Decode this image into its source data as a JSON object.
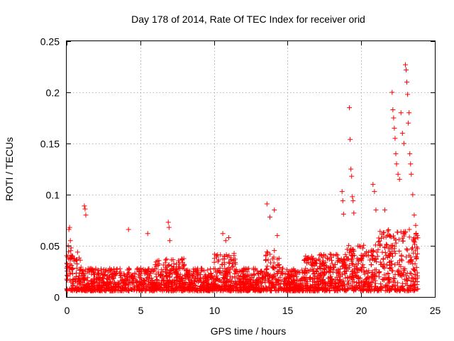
{
  "chart_data": {
    "type": "scatter",
    "title": "Day 178 of 2014, Rate Of TEC Index for receiver orid",
    "xlabel": "GPS time / hours",
    "ylabel": "ROTI / TECUs",
    "xlim": [
      0,
      25
    ],
    "ylim": [
      0,
      0.25
    ],
    "x_ticks": [
      0,
      5,
      10,
      15,
      20,
      25
    ],
    "x_tick_labels": [
      "0",
      "5",
      "10",
      "15",
      "20",
      "25"
    ],
    "y_ticks": [
      0,
      0.05,
      0.1,
      0.15,
      0.2,
      0.25
    ],
    "y_tick_labels": [
      "0",
      "0.05",
      "0.1",
      "0.15",
      "0.2",
      "0.25"
    ],
    "grid": true,
    "marker": "+",
    "series_color": "#ff0000",
    "series": [
      {
        "name": "ROTI",
        "x": [
          0.1,
          0.15,
          0.2,
          0.25,
          0.3,
          0.4,
          0.5,
          1.2,
          1.25,
          1.3,
          4.2,
          5.5,
          6.9,
          6.95,
          7.0,
          10.6,
          10.8,
          11.0,
          13.6,
          13.8,
          14.1,
          14.3,
          18.7,
          18.75,
          18.8,
          19.2,
          19.25,
          19.3,
          19.35,
          19.4,
          19.45,
          19.5,
          20.8,
          20.9,
          21.0,
          21.6,
          22.1,
          22.15,
          22.2,
          22.25,
          22.3,
          22.35,
          22.4,
          22.5,
          22.6,
          22.7,
          22.8,
          22.9,
          23.0,
          23.05,
          23.1,
          23.15,
          23.2,
          23.25,
          23.3,
          23.35,
          23.4,
          23.5,
          23.6,
          23.7,
          23.8
        ],
        "y": [
          0.05,
          0.066,
          0.068,
          0.055,
          0.048,
          0.04,
          0.035,
          0.089,
          0.086,
          0.08,
          0.066,
          0.062,
          0.073,
          0.068,
          0.055,
          0.062,
          0.055,
          0.058,
          0.091,
          0.078,
          0.085,
          0.06,
          0.103,
          0.094,
          0.081,
          0.185,
          0.154,
          0.125,
          0.118,
          0.098,
          0.094,
          0.082,
          0.11,
          0.103,
          0.085,
          0.085,
          0.2,
          0.183,
          0.175,
          0.165,
          0.155,
          0.14,
          0.13,
          0.12,
          0.115,
          0.18,
          0.16,
          0.15,
          0.227,
          0.222,
          0.21,
          0.198,
          0.17,
          0.18,
          0.14,
          0.13,
          0.12,
          0.1,
          0.08,
          0.07,
          0.06
        ]
      }
    ]
  }
}
